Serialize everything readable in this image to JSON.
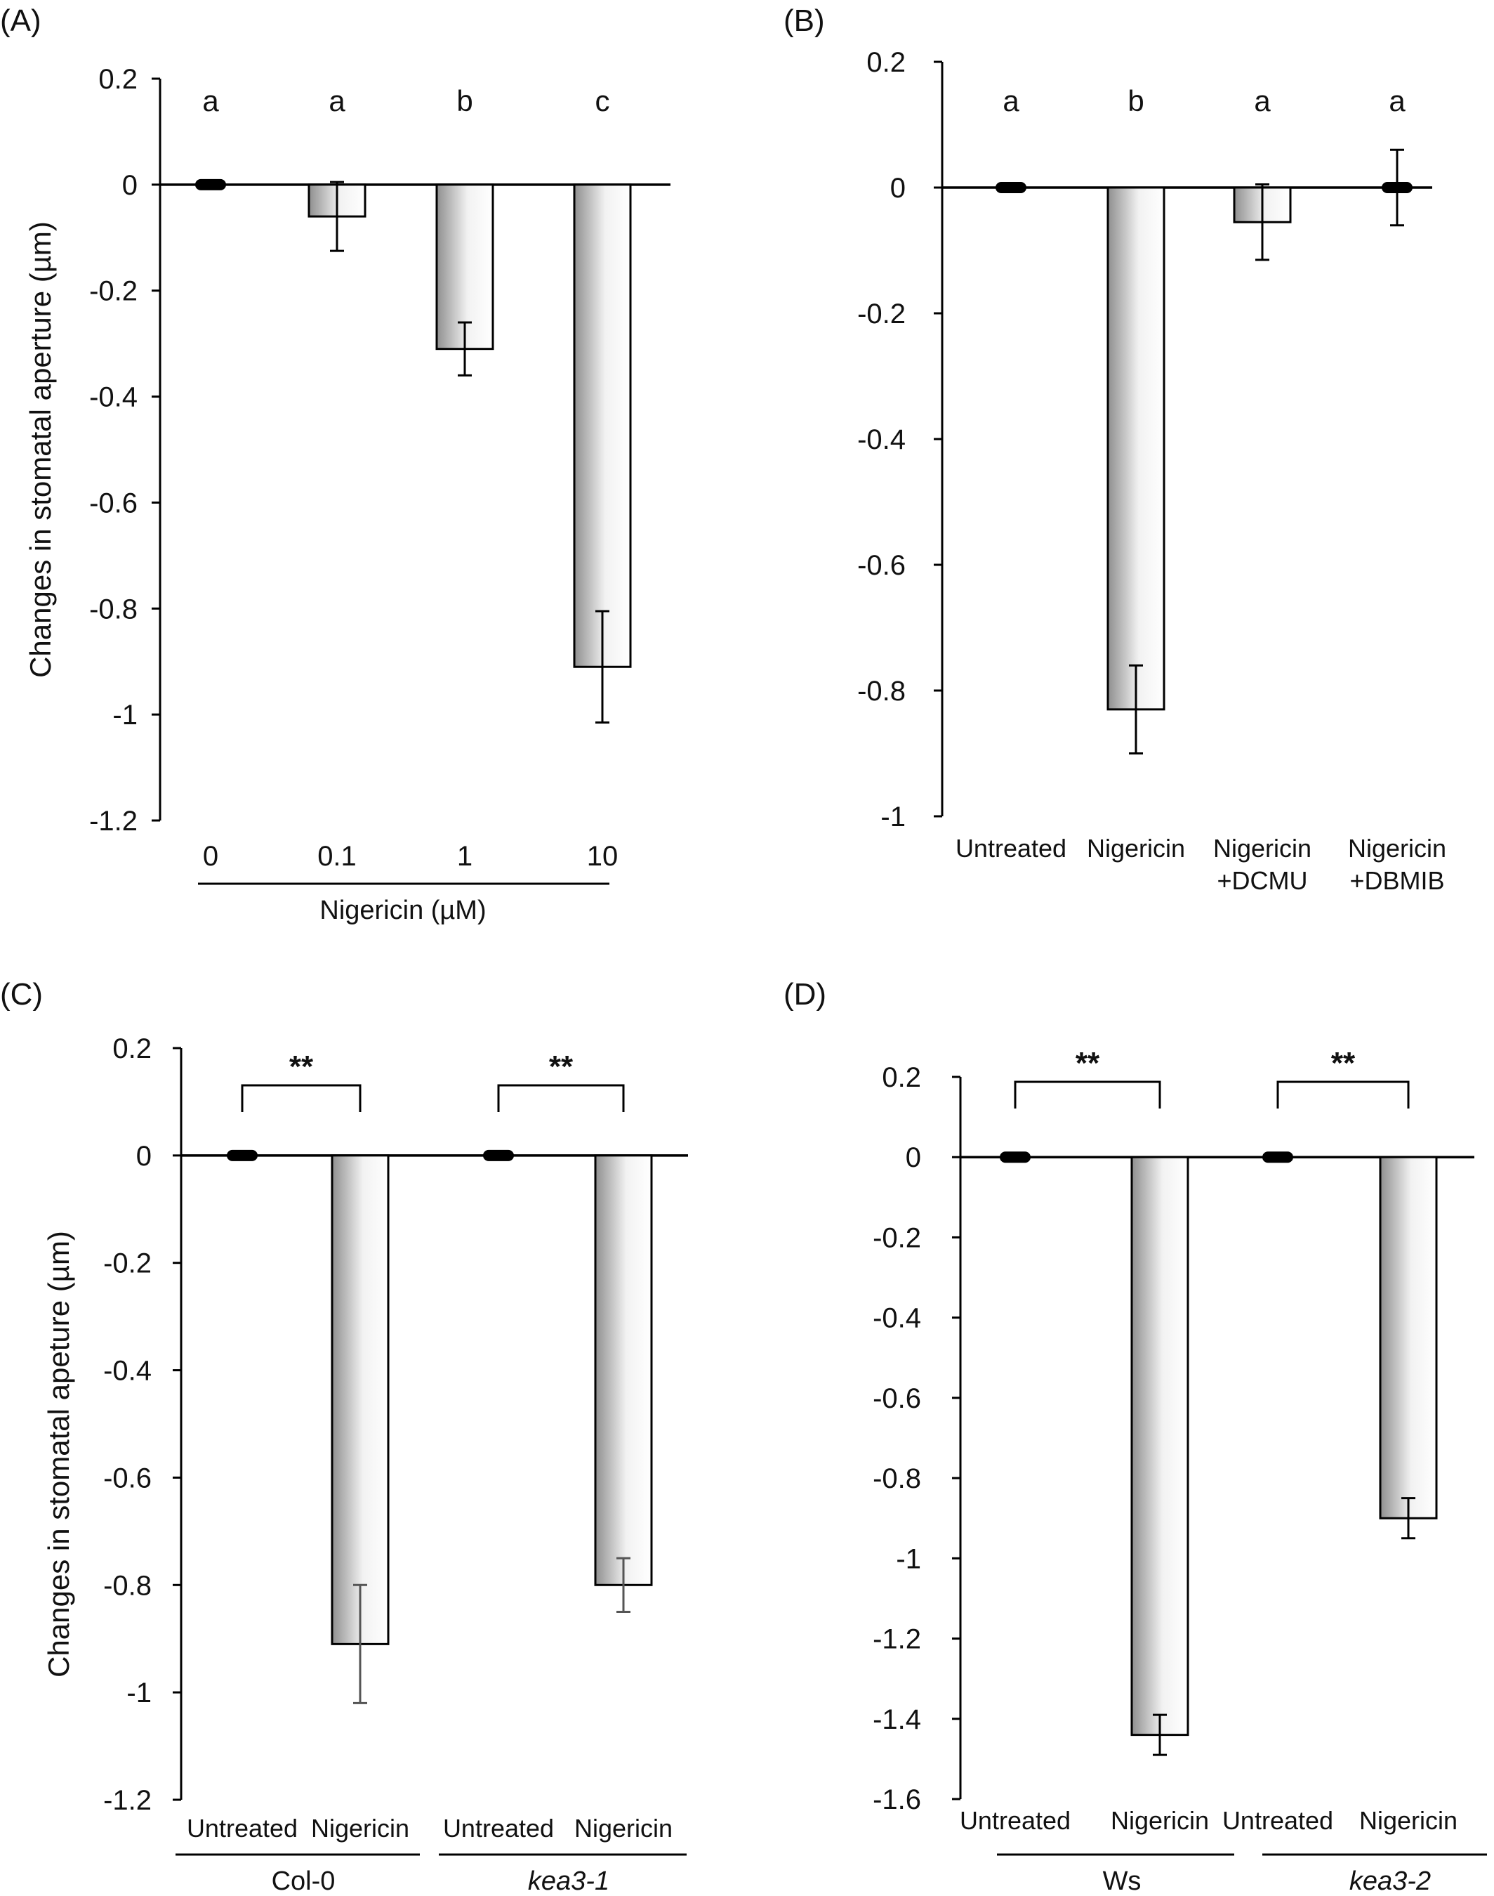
{
  "colors": {
    "axis": "#000000",
    "bar_edge": "#000000",
    "bar_fill_dark": "#9a9a9a",
    "bar_fill_light": "#ffffff",
    "errbar": "#000000",
    "errbar_gray": "#555555"
  },
  "panels": {
    "A": {
      "label": "(A)"
    },
    "B": {
      "label": "(B)"
    },
    "C": {
      "label": "(C)"
    },
    "D": {
      "label": "(D)"
    }
  },
  "chart_data": [
    {
      "id": "A",
      "type": "bar",
      "ylabel": "Changes in stomatal aperture (µm)",
      "xlabel": "Nigericin (µM)",
      "ylim": [
        -1.2,
        0.2
      ],
      "yticks": [
        "0.2",
        "0",
        "-0.2",
        "-0.4",
        "-0.6",
        "-0.8",
        "-1",
        "-1.2"
      ],
      "categories": [
        "0",
        "0.1",
        "1",
        "10"
      ],
      "values": [
        0,
        -0.06,
        -0.31,
        -0.91
      ],
      "errors": [
        0.01,
        0.065,
        0.05,
        0.105
      ],
      "letters": [
        "a",
        "a",
        "b",
        "c"
      ]
    },
    {
      "id": "B",
      "type": "bar",
      "ylim": [
        -1,
        0.2
      ],
      "yticks": [
        "0.2",
        "0",
        "-0.2",
        "-0.4",
        "-0.6",
        "-0.8",
        "-1"
      ],
      "categories": [
        [
          "Untreated"
        ],
        [
          "Nigericin"
        ],
        [
          "Nigericin",
          "+DCMU"
        ],
        [
          "Nigericin",
          "+DBMIB"
        ]
      ],
      "values": [
        0,
        -0.83,
        -0.055,
        0
      ],
      "errors": [
        0.01,
        0.07,
        0.06,
        0.06
      ],
      "letters": [
        "a",
        "b",
        "a",
        "a"
      ]
    },
    {
      "id": "C",
      "type": "bar",
      "ylabel": "Changes in stomatal apeture (µm)",
      "ylim": [
        -1.2,
        0.2
      ],
      "yticks": [
        "0.2",
        "0",
        "-0.2",
        "-0.4",
        "-0.6",
        "-0.8",
        "-1",
        "-1.2"
      ],
      "categories": [
        "Untreated",
        "Nigericin",
        "Untreated",
        "Nigericin"
      ],
      "groups": [
        "Col-0",
        "kea3-1"
      ],
      "values": [
        0,
        -0.91,
        0,
        -0.8
      ],
      "errors": [
        0.01,
        0.11,
        0.01,
        0.05
      ],
      "significance": [
        "**",
        "**"
      ]
    },
    {
      "id": "D",
      "type": "bar",
      "ylim": [
        -1.6,
        0.2
      ],
      "yticks": [
        "0.2",
        "0",
        "-0.2",
        "-0.4",
        "-0.6",
        "-0.8",
        "-1",
        "-1.2",
        "-1.4",
        "-1.6"
      ],
      "categories": [
        "Untreated",
        "Nigericin",
        "Untreated",
        "Nigericin"
      ],
      "groups": [
        "Ws",
        "kea3-2"
      ],
      "values": [
        0,
        -1.44,
        0,
        -0.9
      ],
      "errors": [
        0.01,
        0.05,
        0.01,
        0.05
      ],
      "significance": [
        "**",
        "**"
      ]
    }
  ]
}
